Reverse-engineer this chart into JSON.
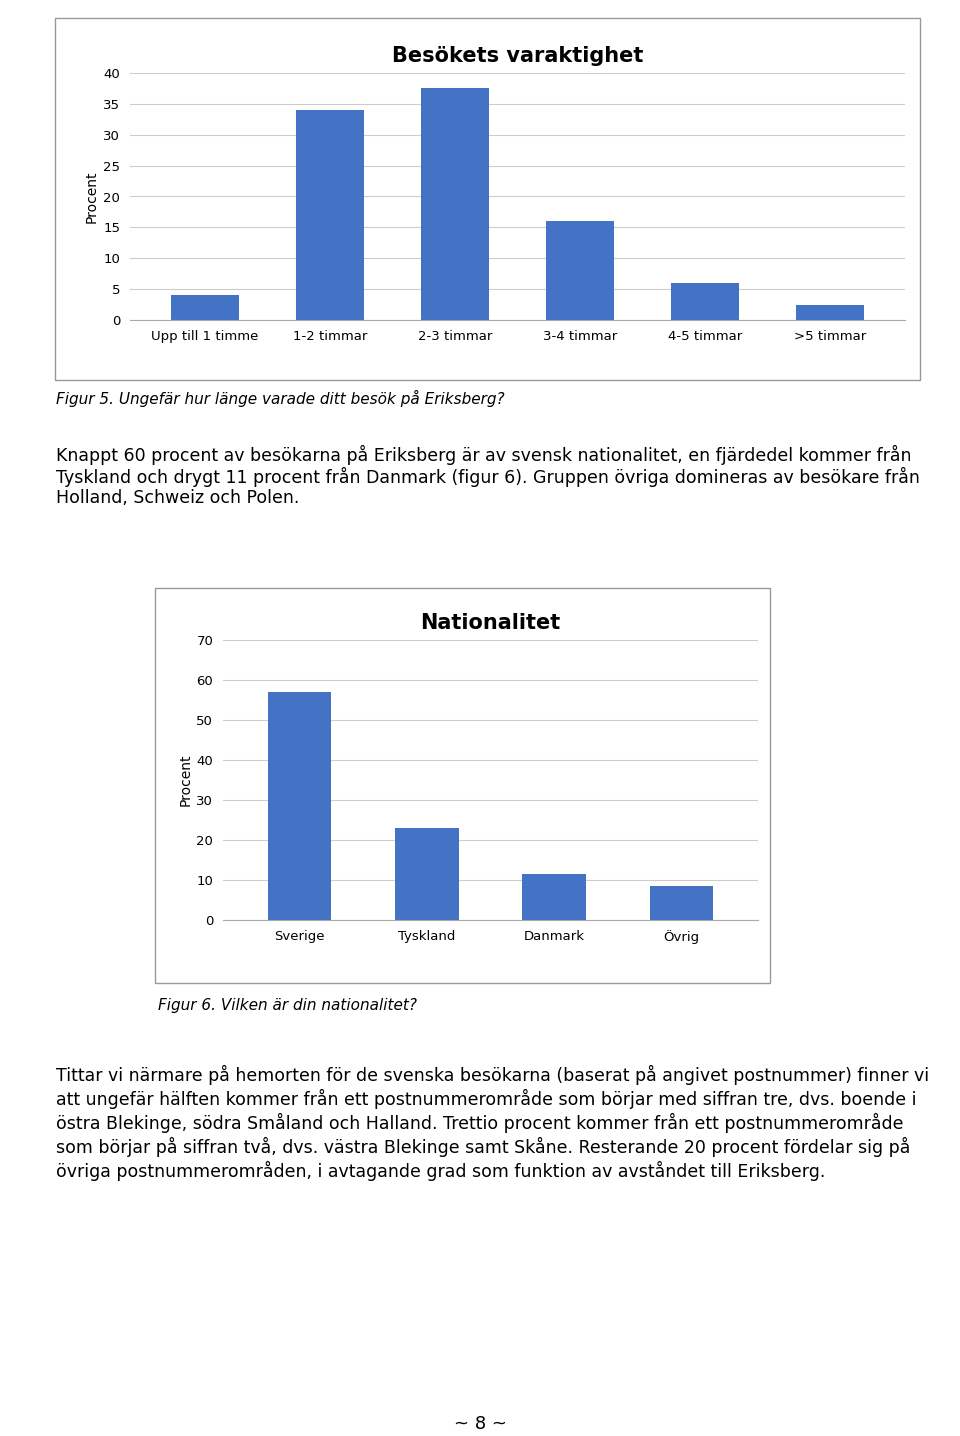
{
  "chart1": {
    "title": "Besökets varaktighet",
    "categories": [
      "Upp till 1 timme",
      "1-2 timmar",
      "2-3 timmar",
      "3-4 timmar",
      "4-5 timmar",
      ">5 timmar"
    ],
    "values": [
      4,
      34,
      37.5,
      16,
      6,
      2.5
    ],
    "bar_color": "#4472C4",
    "ylabel": "Procent",
    "ylim": [
      0,
      40
    ],
    "yticks": [
      0,
      5,
      10,
      15,
      20,
      25,
      30,
      35,
      40
    ]
  },
  "chart2": {
    "title": "Nationalitet",
    "categories": [
      "Sverige",
      "Tyskland",
      "Danmark",
      "Övrig"
    ],
    "values": [
      57,
      23,
      11.5,
      8.5
    ],
    "bar_color": "#4472C4",
    "ylabel": "Procent",
    "ylim": [
      0,
      70
    ],
    "yticks": [
      0,
      10,
      20,
      30,
      40,
      50,
      60,
      70
    ]
  },
  "fig5_caption": "Figur 5. Ungefär hur länge varade ditt besök på Eriksberg?",
  "fig6_caption": "Figur 6. Vilken är din nationalitet?",
  "paragraph1_lines": [
    "Knappt 60 procent av besökarna på Eriksberg är av svensk nationalitet, en fjärdedel kommer från",
    "Tyskland och drygt 11 procent från Danmark (figur 6). Gruppen övriga domineras av besökare från",
    "Holland, Schweiz och Polen."
  ],
  "paragraph2_lines": [
    "Tittar vi närmare på hemorten för de svenska besökarna (baserat på angivet postnummer) finner vi",
    "att ungefär hälften kommer från ett postnummerområde som börjar med siffran tre, dvs. boende i",
    "östra Blekinge, södra Småland och Halland. Trettio procent kommer från ett postnummerområde",
    "som börjar på siffran två, dvs. västra Blekinge samt Skåne. Resterande 20 procent fördelar sig på",
    "övriga postnummerområden, i avtagande grad som funktion av avståndet till Eriksberg."
  ],
  "page_number": "~ 8 ~",
  "background_color": "#ffffff",
  "text_color": "#000000",
  "chart_bg": "#ffffff",
  "border_color": "#aaaaaa",
  "title_fontsize": 15,
  "axis_label_fontsize": 10,
  "tick_fontsize": 9.5,
  "caption_fontsize": 11,
  "body_fontsize": 12.5,
  "page_num_fontsize": 13
}
